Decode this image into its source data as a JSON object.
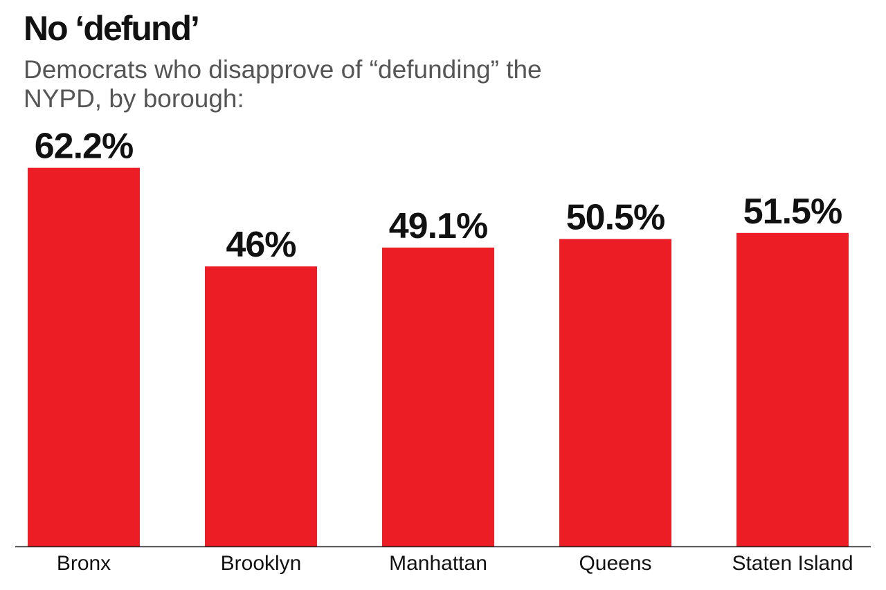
{
  "header": {
    "title": "No ‘defund’",
    "subtitle": "Democrats who disapprove of “defunding” the NYPD, by borough:"
  },
  "chart_data": {
    "type": "bar",
    "title": "No ‘defund’",
    "subtitle": "Democrats who disapprove of “defunding” the NYPD, by borough:",
    "categories": [
      "Bronx",
      "Brooklyn",
      "Manhattan",
      "Queens",
      "Staten Island"
    ],
    "values": [
      62.2,
      46,
      49.1,
      50.5,
      51.5
    ],
    "data_labels": [
      "62.2%",
      "46%",
      "49.1%",
      "50.5%",
      "51.5%"
    ],
    "xlabel": "",
    "ylabel": "",
    "ylim": [
      0,
      100
    ],
    "grid": false,
    "legend": "none",
    "colors": {
      "bar": "#ec1d24",
      "axis": "#222222",
      "value_text": "#111111",
      "category_text": "#111111"
    }
  }
}
